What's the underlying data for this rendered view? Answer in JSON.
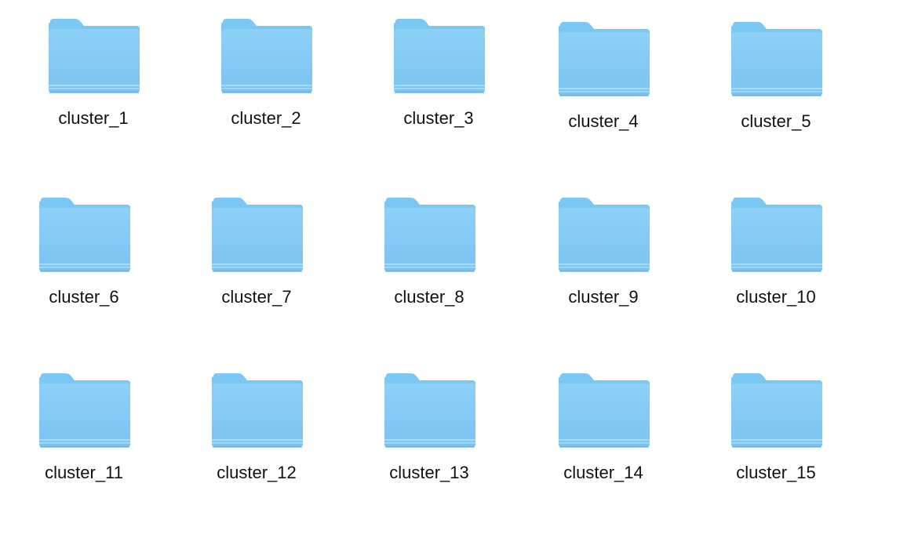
{
  "folder_view": {
    "icon": "folder-icon",
    "colors": {
      "folder_back": "#6FC0EE",
      "folder_front_top": "#8DD0F6",
      "folder_front_bottom": "#7BC4F1",
      "label_text": "#111111"
    },
    "items": [
      {
        "label": "cluster_1"
      },
      {
        "label": "cluster_2"
      },
      {
        "label": "cluster_3"
      },
      {
        "label": "cluster_4"
      },
      {
        "label": "cluster_5"
      },
      {
        "label": "cluster_6"
      },
      {
        "label": "cluster_7"
      },
      {
        "label": "cluster_8"
      },
      {
        "label": "cluster_9"
      },
      {
        "label": "cluster_10"
      },
      {
        "label": "cluster_11"
      },
      {
        "label": "cluster_12"
      },
      {
        "label": "cluster_13"
      },
      {
        "label": "cluster_14"
      },
      {
        "label": "cluster_15"
      }
    ]
  }
}
